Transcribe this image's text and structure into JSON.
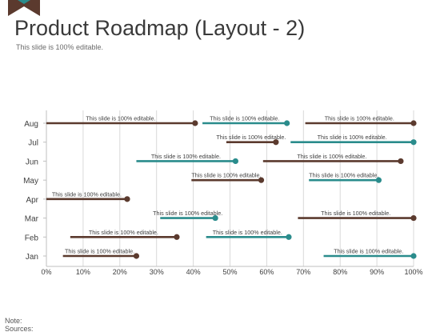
{
  "page": {
    "title": "Product Roadmap (Layout - 2)",
    "subtitle": "This slide is 100% editable.",
    "note_label": "Note:",
    "sources_label": "Sources:"
  },
  "colors": {
    "brown": "#5B3A2E",
    "teal": "#2A8C8C",
    "grid": "#D9D9D9",
    "axis": "#BFBFBF",
    "text": "#404040"
  },
  "chart_data": {
    "type": "range-bar",
    "categories": [
      "Jan",
      "Feb",
      "Mar",
      "Apr",
      "May",
      "Jun",
      "Jul",
      "Aug"
    ],
    "x_ticks": [
      "0%",
      "10%",
      "20%",
      "30%",
      "40%",
      "50%",
      "60%",
      "70%",
      "80%",
      "90%",
      "100%"
    ],
    "xlim": [
      0,
      100
    ],
    "grid": true,
    "bars": [
      {
        "category": "Aug",
        "start": 0,
        "end": 40.5,
        "marker": "end",
        "color": "brown",
        "label": "This slide is 100% editable."
      },
      {
        "category": "Aug",
        "start": 42.5,
        "end": 65.5,
        "marker": "end",
        "color": "teal",
        "label": "This slide is 100% editable."
      },
      {
        "category": "Aug",
        "start": 70.5,
        "end": 100,
        "marker": "end",
        "color": "brown",
        "label": "This slide is 100% editable."
      },
      {
        "category": "Jul",
        "start": 49,
        "end": 62.5,
        "marker": "end",
        "color": "brown",
        "label": "This slide is 100% editable."
      },
      {
        "category": "Jul",
        "start": 66.5,
        "end": 100,
        "marker": "end",
        "color": "teal",
        "label": "This slide is 100% editable."
      },
      {
        "category": "Jun",
        "start": 24.5,
        "end": 51.5,
        "marker": "end",
        "color": "teal",
        "label": "This slide is 100% editable."
      },
      {
        "category": "Jun",
        "start": 59,
        "end": 96.5,
        "marker": "end",
        "color": "brown",
        "label": "This slide is 100% editable."
      },
      {
        "category": "May",
        "start": 39.5,
        "end": 58.5,
        "marker": "end",
        "color": "brown",
        "label": "This slide is 100% editable."
      },
      {
        "category": "May",
        "start": 71.5,
        "end": 90.5,
        "marker": "end",
        "color": "teal",
        "label": "This slide is 100% editable."
      },
      {
        "category": "Apr",
        "start": 0,
        "end": 22,
        "marker": "end",
        "color": "brown",
        "label": "This slide is 100% editable."
      },
      {
        "category": "Mar",
        "start": 31,
        "end": 46,
        "marker": "end",
        "color": "teal",
        "label": "This slide is 100% editable."
      },
      {
        "category": "Mar",
        "start": 68.5,
        "end": 100,
        "marker": "end",
        "color": "brown",
        "label": "This slide is 100% editable."
      },
      {
        "category": "Feb",
        "start": 6.5,
        "end": 35.5,
        "marker": "end",
        "color": "brown",
        "label": "This slide is 100% editable."
      },
      {
        "category": "Feb",
        "start": 43.5,
        "end": 66,
        "marker": "end",
        "color": "teal",
        "label": "This slide is 100% editable."
      },
      {
        "category": "Jan",
        "start": 4.5,
        "end": 24.5,
        "marker": "end",
        "color": "brown",
        "label": "This slide is 100% editable."
      },
      {
        "category": "Jan",
        "start": 75.5,
        "end": 100,
        "marker": "end",
        "color": "teal",
        "label": "This slide is 100% editable."
      }
    ]
  }
}
